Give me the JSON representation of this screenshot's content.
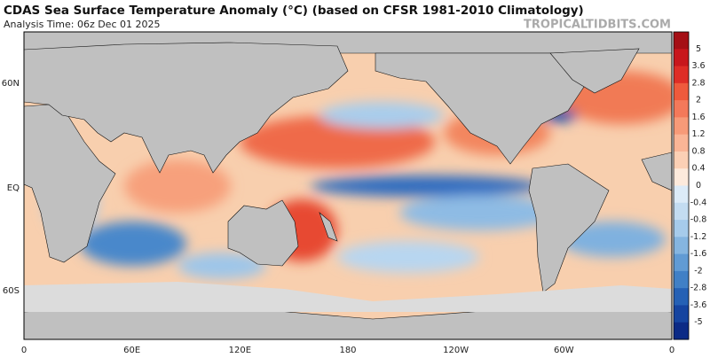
{
  "header": {
    "title": "CDAS Sea Surface Temperature Anomaly (°C) (based on CFSR 1981-2010 Climatology)",
    "subtitle": "Analysis Time: 06z Dec 01 2025",
    "watermark": "TROPICALTIDBITS.COM"
  },
  "map": {
    "lat_labels": [
      "60N",
      "EQ",
      "60S"
    ],
    "lon_labels": [
      "0",
      "60E",
      "120E",
      "180",
      "120W",
      "60W",
      "0"
    ]
  },
  "colorbar": {
    "labels": [
      "5",
      "3.6",
      "2.8",
      "2",
      "1.6",
      "1.2",
      "0.8",
      "0.4",
      "0",
      "-0.4",
      "-0.8",
      "-1.2",
      "-1.6",
      "-2",
      "-2.8",
      "-3.6",
      "-5"
    ],
    "colors": [
      "#a50f15",
      "#c8171c",
      "#de2d26",
      "#ef5a3c",
      "#f4795a",
      "#f79a78",
      "#fab596",
      "#fcd0b5",
      "#fdeadc",
      "#dcebf8",
      "#c3dcf1",
      "#a6cbeb",
      "#85b5e0",
      "#619bd4",
      "#4080c6",
      "#2561b5",
      "#1544a0",
      "#0b2a86"
    ]
  }
}
